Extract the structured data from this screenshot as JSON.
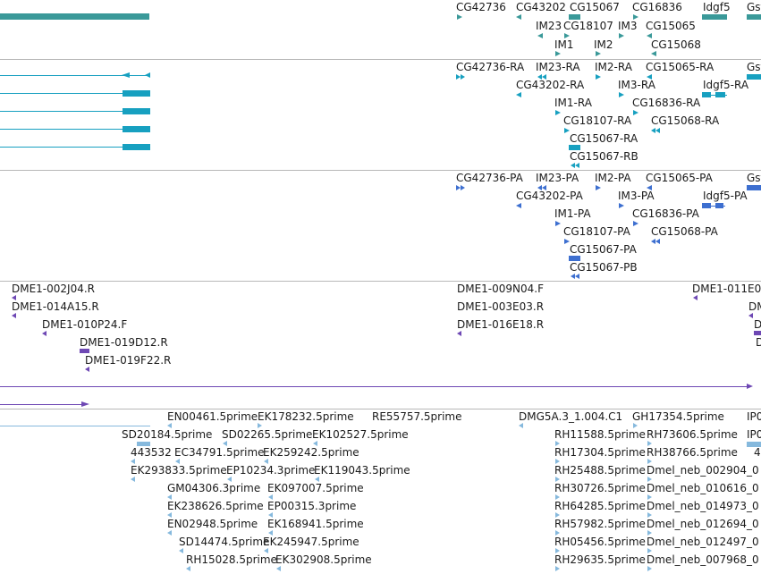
{
  "colors": {
    "gene": "#3a9999",
    "transcript": "#17a0c0",
    "protein": "#3d6fd0",
    "clone": "#6e48b4",
    "est": "#86b9dd",
    "border": "#b8b8b8"
  },
  "tracks": {
    "genes": {
      "labels": [
        "CG42736",
        "CG43202",
        "CG15067",
        "CG16836",
        "Idgf5",
        "Gst",
        "IM23",
        "CG18107",
        "IM3",
        "CG15065",
        "IM1",
        "IM2",
        "CG15068"
      ]
    },
    "transcripts": {
      "labels": [
        "CG42736-RA",
        "IM23-RA",
        "IM2-RA",
        "CG15065-RA",
        "Gst",
        "CG43202-RA",
        "IM3-RA",
        "Idgf5-RA",
        "IM1-RA",
        "CG16836-RA",
        "CG18107-RA",
        "CG15068-RA",
        "CG15067-RA",
        "CG15067-RB"
      ]
    },
    "proteins": {
      "labels": [
        "CG42736-PA",
        "IM23-PA",
        "IM2-PA",
        "CG15065-PA",
        "Gst",
        "CG43202-PA",
        "IM3-PA",
        "Idgf5-PA",
        "IM1-PA",
        "CG16836-PA",
        "CG18107-PA",
        "CG15068-PA",
        "CG15067-PA",
        "CG15067-PB"
      ]
    },
    "clones": {
      "labels": [
        "DME1-002J04.R",
        "DME1-014A15.R",
        "DME1-010P24.F",
        "DME1-019D12.R",
        "DME1-019F22.R",
        "DME1-009N04.F",
        "DME1-003E03.R",
        "DME1-016E18.R",
        "DME1-011E0",
        "DM",
        "D",
        "D"
      ]
    },
    "ests": {
      "labels": [
        "EN00461.5prime",
        "EK178232.5prime",
        "RE55757.5prime",
        "DMG5A.3_1.004.C1",
        "GH17354.5prime",
        "IP0",
        "SD20184.5prime",
        "SD02265.5prime",
        "EK102527.5prime",
        "RH11588.5prime",
        "RH73606.5prime",
        "IP0",
        "443532",
        "EC34791.5prime",
        "EK259242.5prime",
        "RH17304.5prime",
        "RH38766.5prime",
        "4",
        "EK293833.5prime",
        "EP10234.3prime",
        "EK119043.5prime",
        "RH25488.5prime",
        "Dmel_neb_002904_0",
        "GM04306.3prime",
        "EK097007.5prime",
        "RH30726.5prime",
        "Dmel_neb_010616_0",
        "EK238626.5prime",
        "EP00315.3prime",
        "RH64285.5prime",
        "Dmel_neb_014973_0",
        "EN02948.5prime",
        "EK168941.5prime",
        "RH57982.5prime",
        "Dmel_neb_012694_0",
        "SD14474.5prime",
        "EK245947.5prime",
        "RH05456.5prime",
        "Dmel_neb_012497_0",
        "RH15028.5prime",
        "EK302908.5prime",
        "RH29635.5prime",
        "Dmel_neb_007968_0"
      ]
    }
  }
}
